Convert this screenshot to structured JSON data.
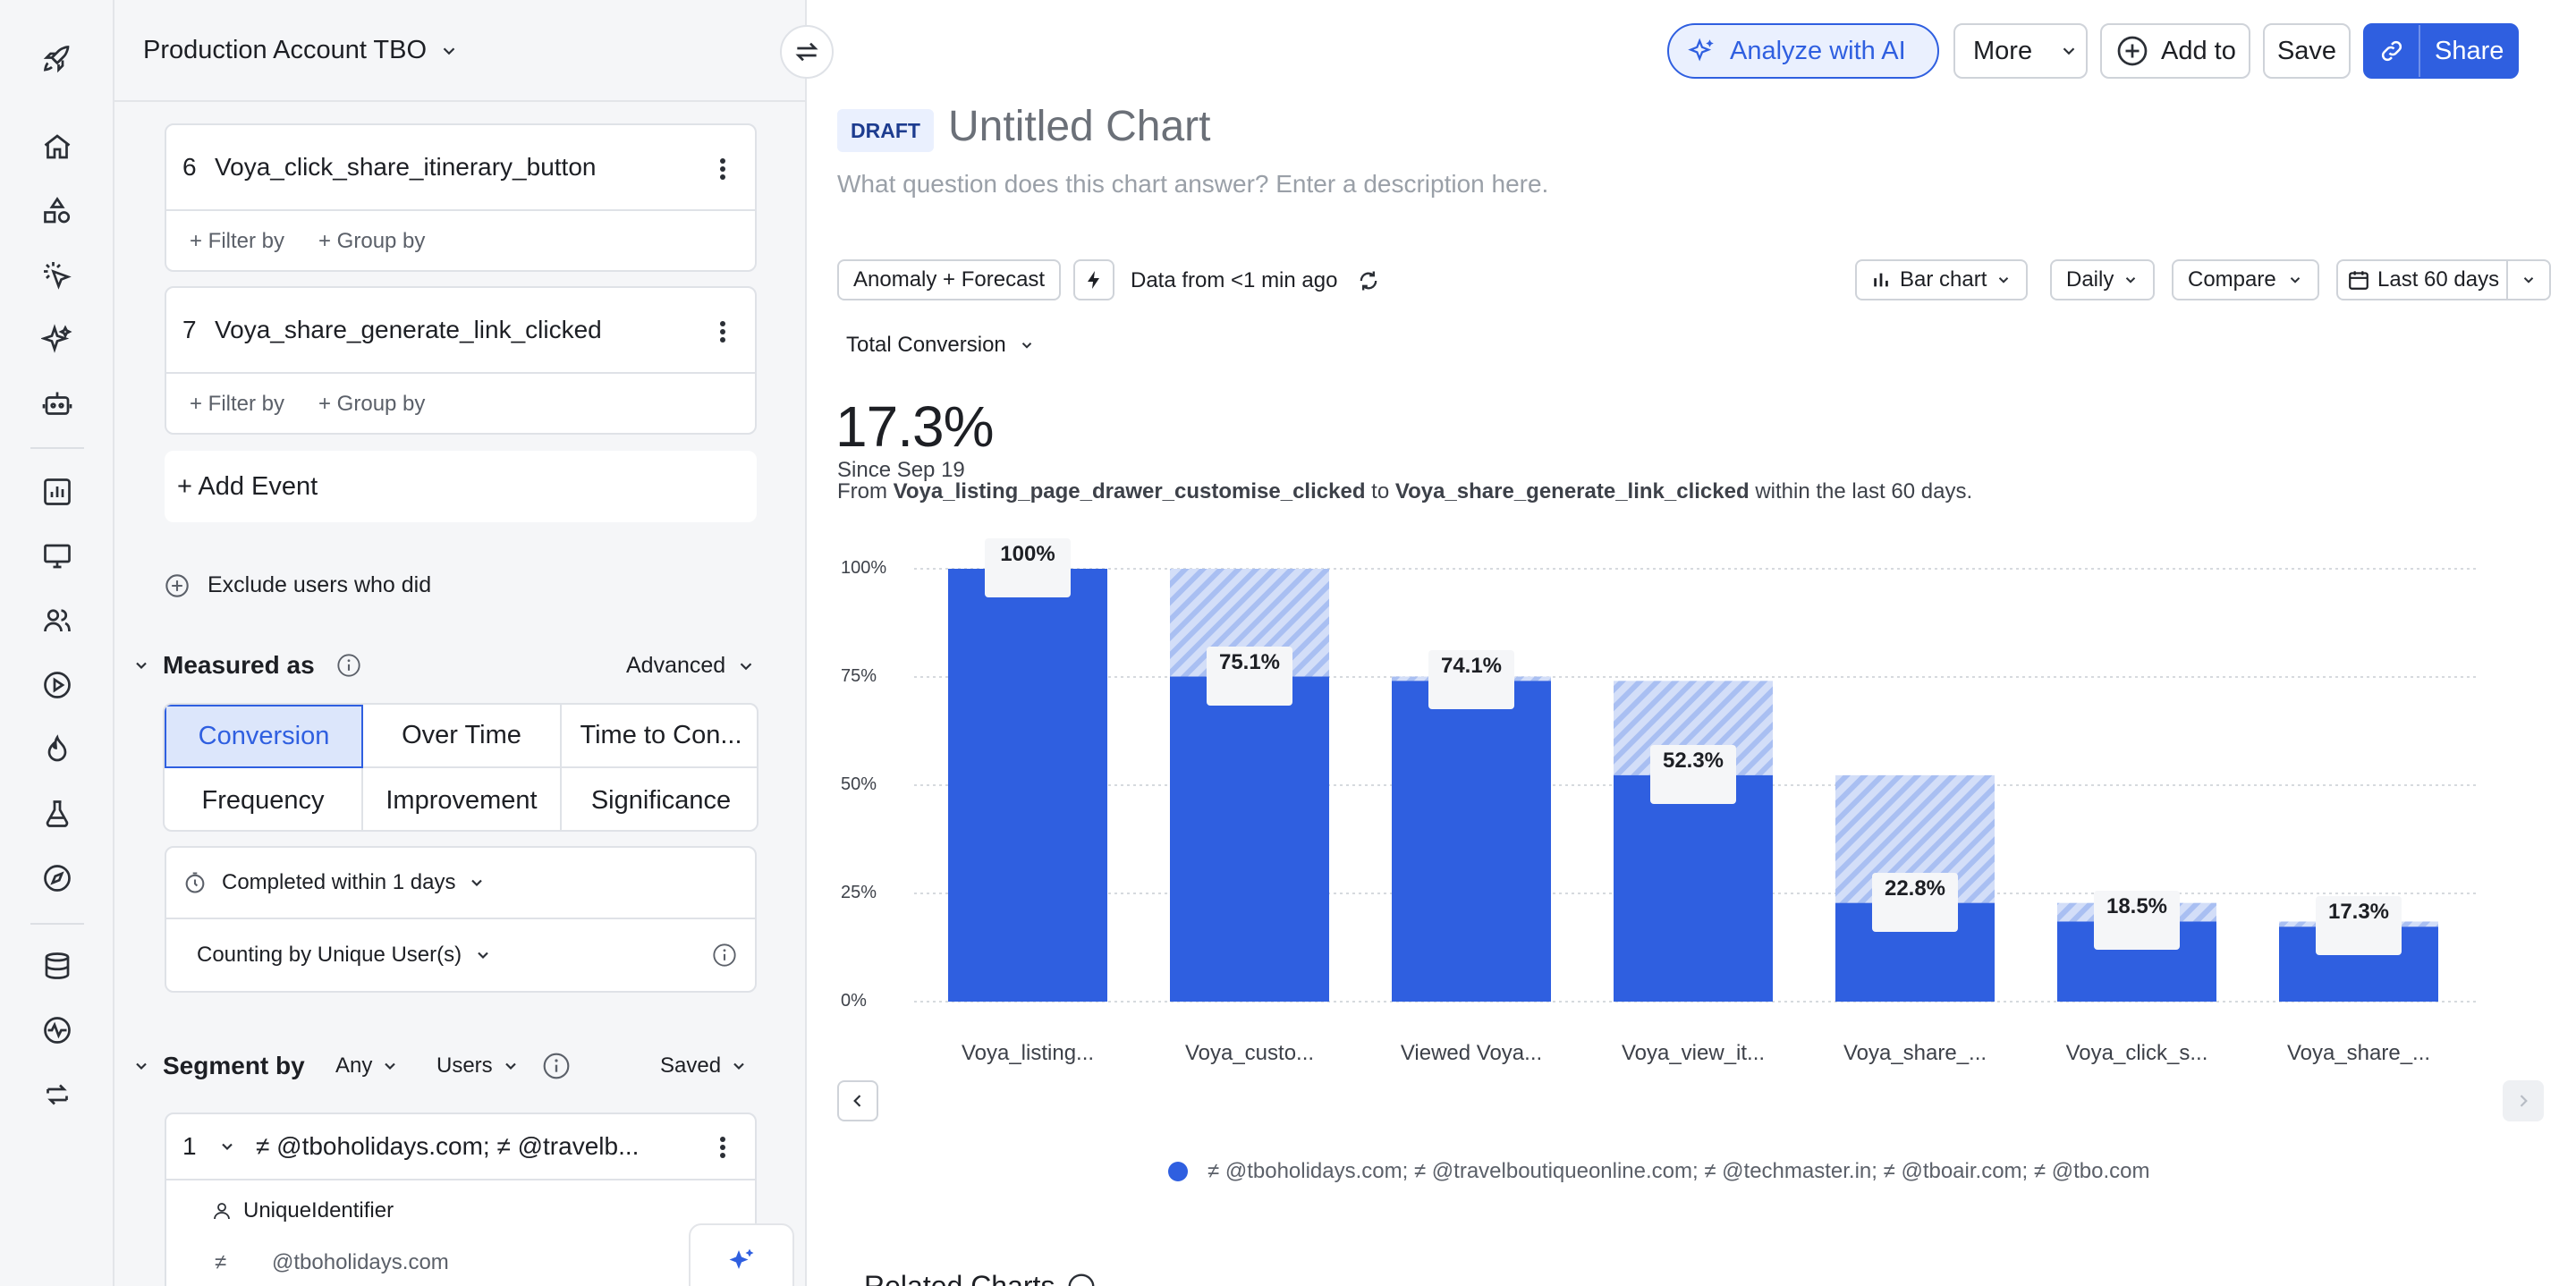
{
  "workspace": {
    "name": "Production Account TBO"
  },
  "events": [
    {
      "index": "6",
      "name": "Voya_click_share_itinerary_button",
      "filter_label": "+ Filter by",
      "group_label": "+ Group by"
    },
    {
      "index": "7",
      "name": "Voya_share_generate_link_clicked",
      "filter_label": "+ Filter by",
      "group_label": "+ Group by"
    }
  ],
  "add_event_label": "+ Add Event",
  "exclude_label": "Exclude users who did",
  "measured": {
    "title": "Measured as",
    "advanced": "Advanced",
    "options": [
      "Conversion",
      "Over Time",
      "Time to Con...",
      "Frequency",
      "Improvement",
      "Significance"
    ],
    "selected": "Conversion"
  },
  "completed_within": "Completed within 1 days",
  "counting_by": "Counting by Unique User(s)",
  "segment": {
    "title": "Segment by",
    "any": "Any",
    "users": "Users",
    "saved": "Saved",
    "item_index": "1",
    "item_label": "≠ @tboholidays.com; ≠ @travelb...",
    "property": "UniqueIdentifier",
    "op": "≠",
    "value": "@tboholidays.com"
  },
  "header": {
    "analyze": "Analyze with AI",
    "more": "More",
    "add_to": "Add to",
    "save": "Save",
    "share": "Share",
    "badge": "DRAFT",
    "title": "Untitled Chart",
    "description_placeholder": "What question does this chart answer? Enter a description here."
  },
  "toolbar": {
    "anomaly": "Anomaly + Forecast",
    "data_from": "Data from <1 min ago",
    "chart_type": "Bar chart",
    "interval": "Daily",
    "compare": "Compare",
    "date_range": "Last 60 days"
  },
  "metric": {
    "selector": "Total Conversion",
    "value": "17.3%",
    "since": "Since Sep 19",
    "from_prefix": "From",
    "from_event": "Voya_listing_page_drawer_customise_clicked",
    "to_word": "to",
    "to_event": "Voya_share_generate_link_clicked",
    "suffix": "within the last 60 days."
  },
  "legend": {
    "series": "≠ @tboholidays.com; ≠ @travelboutiqueonline.com; ≠ @techmaster.in; ≠ @tboair.com; ≠ @tbo.com"
  },
  "related": "Related Charts",
  "colors": {
    "bar": "#2f5fe0",
    "hatch": "#b9cbf5",
    "accent": "#2f5fe0"
  },
  "chart_data": {
    "type": "bar",
    "categories": [
      "Voya_listing...",
      "Voya_custo...",
      "Viewed Voya...",
      "Voya_view_it...",
      "Voya_share_...",
      "Voya_click_s...",
      "Voya_share_..."
    ],
    "values": [
      100,
      75.1,
      74.1,
      52.3,
      22.8,
      18.5,
      17.3
    ],
    "previous_step": [
      100,
      100,
      75.1,
      74.1,
      52.3,
      22.8,
      18.5
    ],
    "labels": [
      "100%",
      "75.1%",
      "74.1%",
      "52.3%",
      "22.8%",
      "18.5%",
      "17.3%"
    ],
    "yticks": [
      "100%",
      "75%",
      "50%",
      "25%",
      "0%"
    ],
    "ylim": [
      0,
      100
    ]
  }
}
